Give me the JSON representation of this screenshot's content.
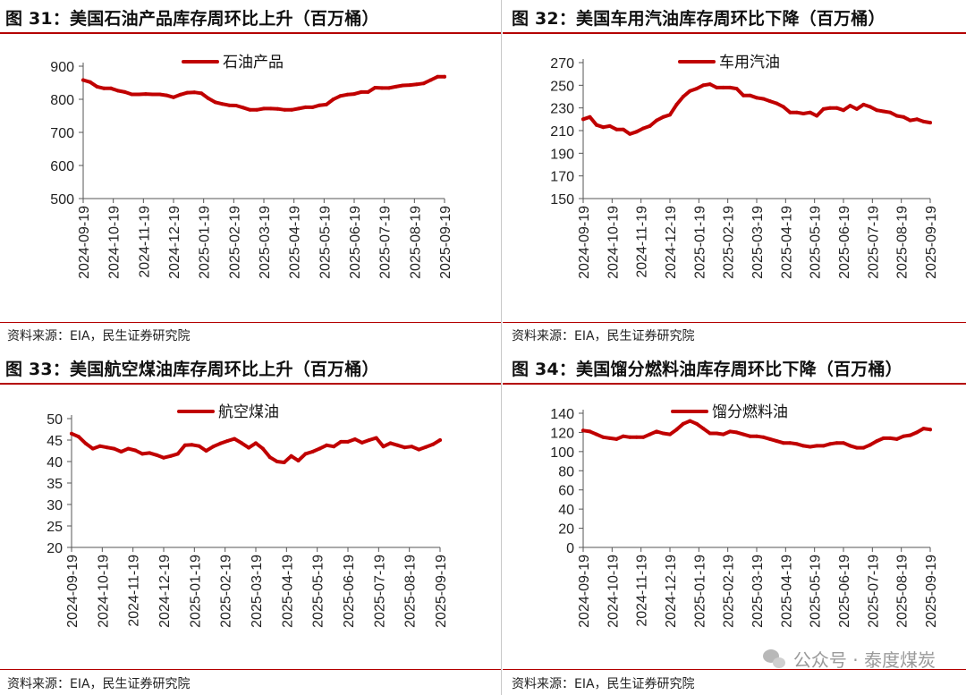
{
  "panels": [
    {
      "title": "图 31：美国石油产品库存周环比上升（百万桶）",
      "source": "资料来源：EIA，民生证券研究院"
    },
    {
      "title": "图 32：美国车用汽油库存周环比下降（百万桶）",
      "source": "资料来源：EIA，民生证券研究院"
    },
    {
      "title": "图 33：美国航空煤油库存周环比上升（百万桶）",
      "source": "资料来源：EIA，民生证券研究院"
    },
    {
      "title": "图 34：美国馏分燃料油库存周环比下降（百万桶）",
      "source": "资料来源：EIA，民生证券研究院"
    }
  ],
  "watermark": {
    "text": "公众号 · 泰度煤炭",
    "icon": "wechat-icon"
  },
  "colors": {
    "line": "#c00000",
    "axis": "#555555",
    "rule": "#b40000"
  },
  "chart_data": [
    {
      "type": "line",
      "title": "图 31：美国石油产品库存周环比上升（百万桶）",
      "series": [
        {
          "name": "石油产品",
          "values": [
            858,
            852,
            838,
            833,
            833,
            826,
            822,
            815,
            815,
            816,
            815,
            815,
            812,
            806,
            814,
            820,
            821,
            818,
            803,
            791,
            786,
            782,
            781,
            775,
            768,
            768,
            772,
            772,
            771,
            768,
            768,
            772,
            776,
            776,
            782,
            784,
            800,
            810,
            814,
            816,
            822,
            822,
            835,
            834,
            834,
            838,
            842,
            843,
            845,
            848,
            858,
            868,
            868
          ]
        }
      ],
      "x_ticks": [
        "2024-09-19",
        "2024-10-19",
        "2024-11-19",
        "2024-12-19",
        "2025-01-19",
        "2025-02-19",
        "2025-03-19",
        "2025-04-19",
        "2025-05-19",
        "2025-06-19",
        "2025-07-19",
        "2025-08-19",
        "2025-09-19"
      ],
      "y_ticks": [
        500,
        600,
        700,
        800,
        900
      ],
      "ylim": [
        500,
        900
      ],
      "legend": "top-center"
    },
    {
      "type": "line",
      "title": "图 32：美国车用汽油库存周环比下降（百万桶）",
      "series": [
        {
          "name": "车用汽油",
          "values": [
            220,
            222,
            215,
            213,
            214,
            211,
            211,
            207,
            209,
            212,
            214,
            219,
            222,
            224,
            233,
            240,
            245,
            247,
            250,
            251,
            248,
            248,
            248,
            247,
            241,
            241,
            239,
            238,
            236,
            234,
            231,
            226,
            226,
            225,
            226,
            223,
            229,
            230,
            230,
            228,
            232,
            229,
            233,
            231,
            228,
            227,
            226,
            223,
            222,
            219,
            220,
            218,
            217
          ]
        }
      ],
      "x_ticks": [
        "2024-09-19",
        "2024-10-19",
        "2024-11-19",
        "2024-12-19",
        "2025-01-19",
        "2025-02-19",
        "2025-03-19",
        "2025-04-19",
        "2025-05-19",
        "2025-06-19",
        "2025-07-19",
        "2025-08-19",
        "2025-09-19"
      ],
      "y_ticks": [
        150,
        170,
        190,
        210,
        230,
        250,
        270
      ],
      "ylim": [
        150,
        270
      ],
      "legend": "top-center"
    },
    {
      "type": "line",
      "title": "图 33：美国航空煤油库存周环比上升（百万桶）",
      "series": [
        {
          "name": "航空煤油",
          "values": [
            46.5,
            45.8,
            44.2,
            43.0,
            43.6,
            43.3,
            43.0,
            42.3,
            43.0,
            42.6,
            41.8,
            42.0,
            41.5,
            40.9,
            41.3,
            41.8,
            43.8,
            43.9,
            43.6,
            42.5,
            43.5,
            44.2,
            44.8,
            45.3,
            44.3,
            43.2,
            44.3,
            43.0,
            41.0,
            40.0,
            39.8,
            41.3,
            40.2,
            41.8,
            42.3,
            43.0,
            43.8,
            43.5,
            44.6,
            44.6,
            45.2,
            44.4,
            45.0,
            45.5,
            43.5,
            44.3,
            43.8,
            43.3,
            43.5,
            42.8,
            43.4,
            44.0,
            45.0
          ]
        }
      ],
      "x_ticks": [
        "2024-09-19",
        "2024-10-19",
        "2024-11-19",
        "2024-12-19",
        "2025-01-19",
        "2025-02-19",
        "2025-03-19",
        "2025-04-19",
        "2025-05-19",
        "2025-06-19",
        "2025-07-19",
        "2025-08-19",
        "2025-09-19"
      ],
      "y_ticks": [
        20,
        25,
        30,
        35,
        40,
        45,
        50
      ],
      "ylim": [
        20,
        50
      ],
      "legend": "top-center"
    },
    {
      "type": "line",
      "title": "图 34：美国馏分燃料油库存周环比下降（百万桶）",
      "series": [
        {
          "name": "馏分燃料油",
          "values": [
            122,
            121,
            118,
            115,
            114,
            113,
            116,
            115,
            115,
            115,
            118,
            121,
            119,
            118,
            123,
            129,
            132,
            129,
            124,
            119,
            119,
            118,
            121,
            120,
            118,
            116,
            116,
            115,
            113,
            111,
            109,
            109,
            108,
            106,
            105,
            106,
            106,
            108,
            109,
            109,
            106,
            104,
            104,
            107,
            111,
            114,
            114,
            113,
            116,
            117,
            120,
            124,
            123
          ]
        }
      ],
      "x_ticks": [
        "2024-09-19",
        "2024-10-19",
        "2024-11-19",
        "2024-12-19",
        "2025-01-19",
        "2025-02-19",
        "2025-03-19",
        "2025-04-19",
        "2025-05-19",
        "2025-06-19",
        "2025-07-19",
        "2025-08-19",
        "2025-09-19"
      ],
      "y_ticks": [
        0,
        20,
        40,
        60,
        80,
        100,
        120,
        140
      ],
      "ylim": [
        0,
        140
      ],
      "legend": "top-center"
    }
  ]
}
